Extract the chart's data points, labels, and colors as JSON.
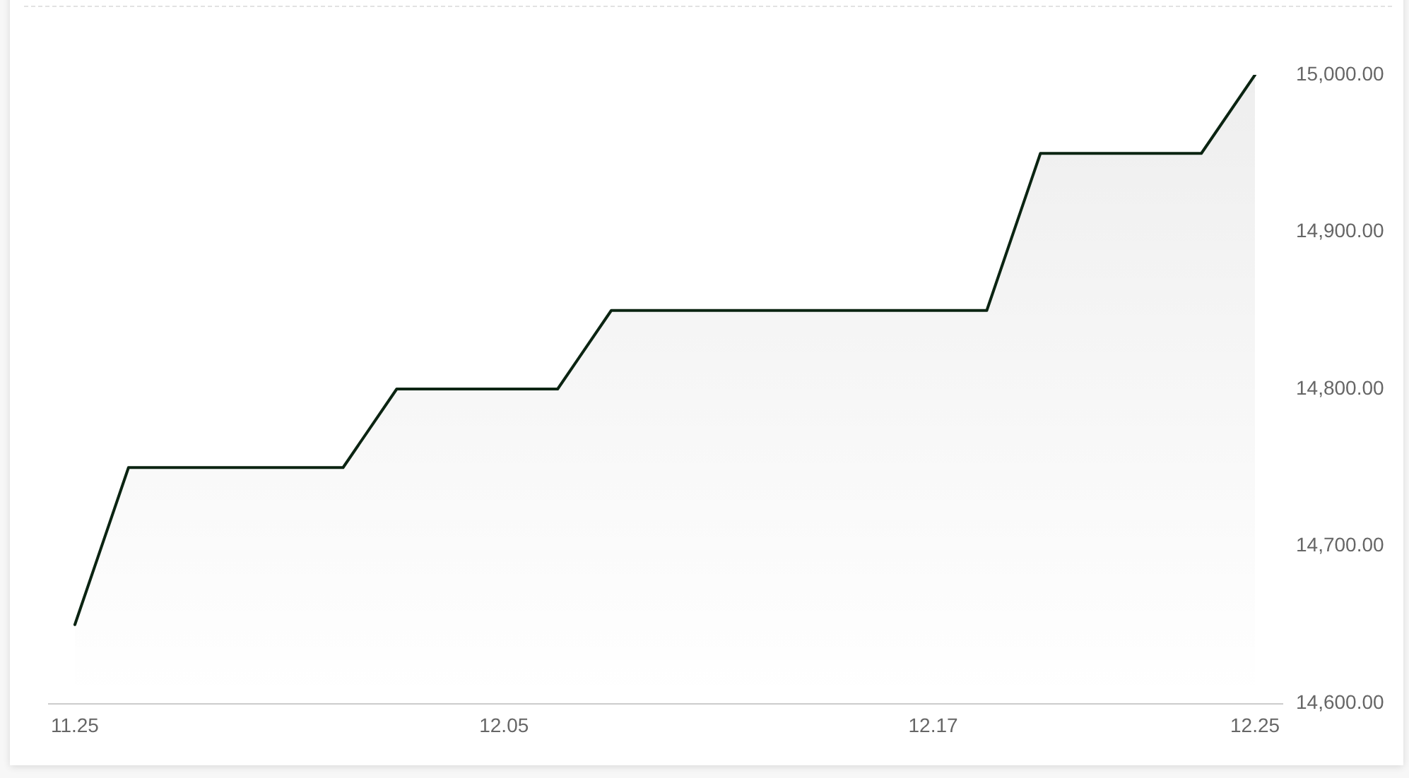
{
  "chart_data": {
    "type": "area",
    "categories": [
      "11.25",
      null,
      null,
      null,
      null,
      null,
      null,
      null,
      "12.05",
      null,
      null,
      null,
      null,
      null,
      null,
      null,
      "12.17",
      null,
      null,
      null,
      null,
      null,
      "12.25"
    ],
    "series": [
      {
        "color": "#0b2412",
        "values": [
          14650,
          14750,
          14750,
          14750,
          14750,
          14750,
          14800,
          14800,
          14800,
          14800,
          14850,
          14850,
          14850,
          14850,
          14850,
          14850,
          14850,
          14850,
          14950,
          14950,
          14950,
          14950,
          15000
        ]
      }
    ],
    "ylim": [
      14600,
      15000
    ],
    "yticks": [
      {
        "value": 14600,
        "label": "14,600.00"
      },
      {
        "value": 14700,
        "label": "14,700.00"
      },
      {
        "value": 14800,
        "label": "14,800.00"
      },
      {
        "value": 14900,
        "label": "14,900.00"
      },
      {
        "value": 15000,
        "label": "15,000.00"
      }
    ],
    "grid": false,
    "legend": false,
    "marker": "none",
    "line_style": "solid"
  }
}
